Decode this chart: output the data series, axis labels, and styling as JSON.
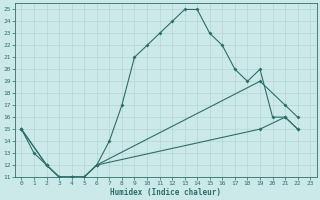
{
  "xlabel": "Humidex (Indice chaleur)",
  "xlim": [
    -0.5,
    23.5
  ],
  "ylim": [
    11,
    25.5
  ],
  "xticks": [
    0,
    1,
    2,
    3,
    4,
    5,
    6,
    7,
    8,
    9,
    10,
    11,
    12,
    13,
    14,
    15,
    16,
    17,
    18,
    19,
    20,
    21,
    22,
    23
  ],
  "yticks": [
    11,
    12,
    13,
    14,
    15,
    16,
    17,
    18,
    19,
    20,
    21,
    22,
    23,
    24,
    25
  ],
  "bg_color": "#cce9e9",
  "grid_color": "#b8d8d8",
  "line_color": "#2d6e68",
  "line1_x": [
    0,
    1,
    2,
    3,
    4,
    5,
    6,
    7,
    8,
    9,
    10,
    11,
    12,
    13,
    14,
    15,
    16,
    17,
    18,
    19,
    20,
    21,
    22
  ],
  "line1_y": [
    15,
    13,
    12,
    11,
    11,
    11,
    12,
    14,
    17,
    21,
    22,
    23,
    24,
    25,
    25,
    23,
    22,
    20,
    19,
    20,
    16,
    16,
    15
  ],
  "line2_x": [
    0,
    2,
    3,
    4,
    5,
    6,
    19,
    21,
    22
  ],
  "line2_y": [
    15,
    12,
    11,
    11,
    11,
    12,
    19,
    17,
    16
  ],
  "line3_x": [
    0,
    2,
    3,
    4,
    5,
    6,
    19,
    21,
    22
  ],
  "line3_y": [
    15,
    12,
    11,
    11,
    11,
    12,
    15,
    16,
    15
  ]
}
